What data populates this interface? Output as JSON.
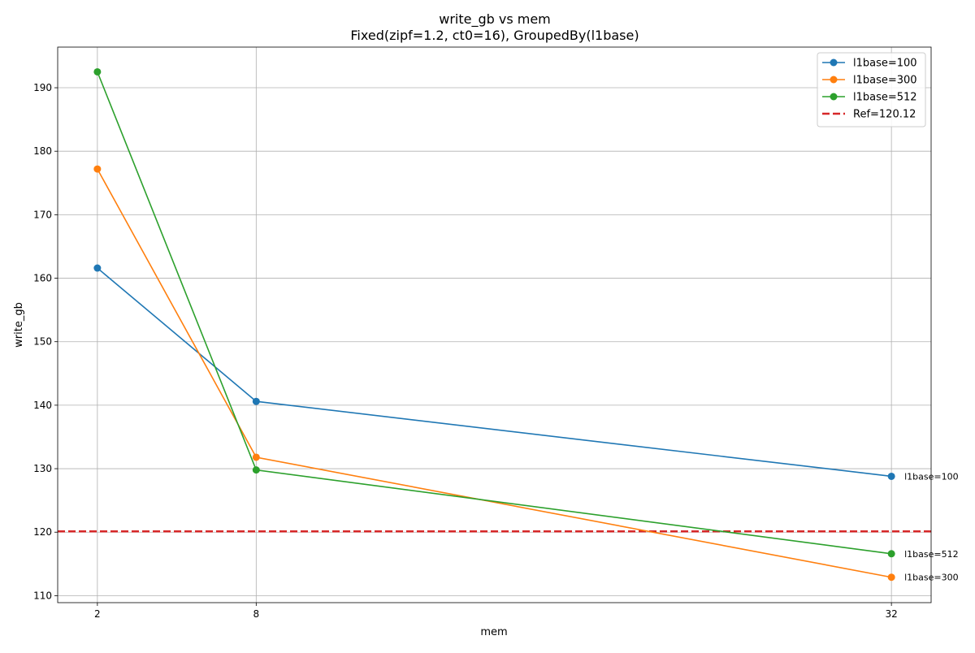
{
  "chart_data": {
    "type": "line",
    "title": "write_gb vs mem",
    "subtitle": "Fixed(zipf=1.2, ct0=16), GroupedBy(l1base)",
    "xlabel": "mem",
    "ylabel": "write_gb",
    "x": [
      2,
      8,
      32
    ],
    "xticks": [
      "2",
      "8",
      "32"
    ],
    "xlim": [
      0.5,
      33.5
    ],
    "ylim": [
      108.9,
      196.4
    ],
    "yticks": [
      "110",
      "120",
      "130",
      "140",
      "150",
      "160",
      "170",
      "180",
      "190"
    ],
    "grid": true,
    "legend_position": "top-right",
    "series": [
      {
        "name": "l1base=100",
        "color": "#1f77b4",
        "values": [
          161.6,
          140.6,
          128.8
        ],
        "end_label": "l1base=100"
      },
      {
        "name": "l1base=300",
        "color": "#ff7f0e",
        "values": [
          177.2,
          131.8,
          112.9
        ],
        "end_label": "l1base=300"
      },
      {
        "name": "l1base=512",
        "color": "#2ca02c",
        "values": [
          192.5,
          129.8,
          116.6
        ],
        "end_label": "l1base=512"
      }
    ],
    "reference": {
      "label": "Ref=120.12",
      "value": 120.12,
      "color": "#d62728"
    }
  }
}
